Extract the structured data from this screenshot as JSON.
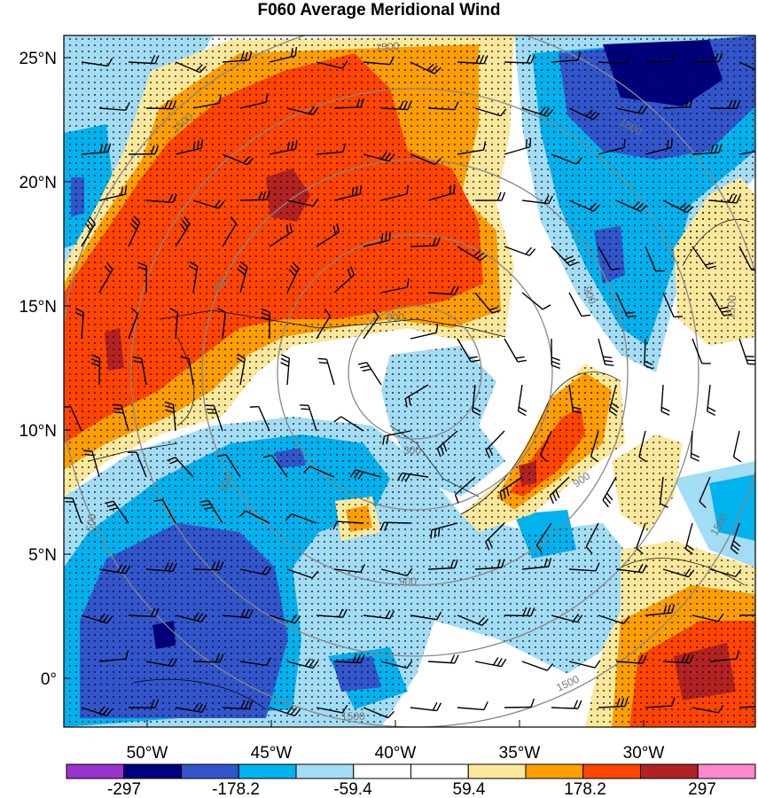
{
  "title": "F060 Average Meridional Wind",
  "map": {
    "lat_labels": [
      "25°N",
      "20°N",
      "15°N",
      "10°N",
      "5°N",
      "0°"
    ],
    "lon_labels": [
      "50°W",
      "45°W",
      "40°W",
      "35°W",
      "30°W"
    ],
    "contour_labels": [
      "1500",
      "1500",
      "1500",
      "1500",
      "1500",
      "1500",
      "1500",
      "900",
      "900",
      "900",
      "900",
      "900",
      "900",
      "300",
      "500"
    ],
    "stippling": "significance dots overlay",
    "wind_barbs": "black barbs"
  },
  "colorbar": {
    "colors": [
      "#9933cc",
      "#00007f",
      "#3355cc",
      "#00b2ee",
      "#a3dcf5",
      "#ffffff",
      "#ffffff",
      "#fbe89c",
      "#ff9e00",
      "#ff4500",
      "#b22222",
      "#ff88cc"
    ],
    "labels": [
      "-297",
      "-178.2",
      "-59.4",
      "59.4",
      "178.2",
      "297"
    ]
  }
}
